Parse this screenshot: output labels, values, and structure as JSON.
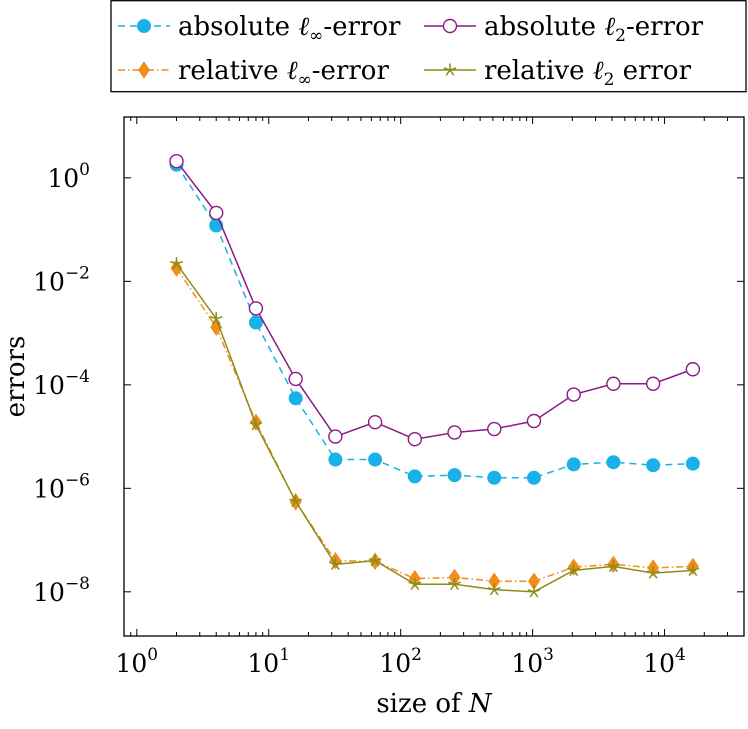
{
  "chart_data": {
    "type": "line",
    "title": "",
    "xlabel": "size of N",
    "ylabel": "errors",
    "xscale": "log",
    "yscale": "log",
    "xlim": [
      0.8,
      40000
    ],
    "ylim": [
      1.4e-09,
      15
    ],
    "x_ticks": [
      {
        "value": 1,
        "base": "10",
        "exp": "0"
      },
      {
        "value": 10,
        "base": "10",
        "exp": "1"
      },
      {
        "value": 100,
        "base": "10",
        "exp": "2"
      },
      {
        "value": 1000,
        "base": "10",
        "exp": "3"
      },
      {
        "value": 10000,
        "base": "10",
        "exp": "4"
      }
    ],
    "y_ticks": [
      {
        "value": 1,
        "base": "10",
        "exp": "0"
      },
      {
        "value": 0.01,
        "base": "10",
        "exp": "−2"
      },
      {
        "value": 0.0001,
        "base": "10",
        "exp": "−4"
      },
      {
        "value": 1e-06,
        "base": "10",
        "exp": "−6"
      },
      {
        "value": 1e-08,
        "base": "10",
        "exp": "−8"
      }
    ],
    "grid": false,
    "legend_position": "above",
    "x": [
      2,
      4,
      8,
      16,
      32,
      64,
      128,
      256,
      512,
      1024,
      2048,
      4096,
      8192,
      16384
    ],
    "series": [
      {
        "name": "absolute ℓ∞-error",
        "legend": {
          "pre": "absolute ",
          "sym": "ℓ",
          "sub": "∞",
          "post": "-error"
        },
        "color": "#1ab0e8",
        "marker": "filled-circle",
        "dash": "dashed",
        "values": [
          1.8,
          0.12,
          0.0016,
          5.5e-05,
          3.6e-06,
          3.6e-06,
          1.7e-06,
          1.8e-06,
          1.6e-06,
          1.6e-06,
          2.9e-06,
          3.2e-06,
          2.8e-06,
          3e-06
        ]
      },
      {
        "name": "absolute ℓ2-error",
        "legend": {
          "pre": "absolute ",
          "sym": "ℓ",
          "sub": "2",
          "post": "-error"
        },
        "color": "#8a1a86",
        "marker": "open-circle",
        "dash": "solid",
        "values": [
          2.1,
          0.21,
          0.003,
          0.00013,
          1e-05,
          1.9e-05,
          8.9e-06,
          1.2e-05,
          1.4e-05,
          2e-05,
          6.5e-05,
          0.000105,
          0.000105,
          0.0002
        ]
      },
      {
        "name": "relative ℓ∞-error",
        "legend": {
          "pre": "relative ",
          "sym": "ℓ",
          "sub": "∞",
          "post": "-error"
        },
        "color": "#f28c1a",
        "marker": "diamond",
        "dash": "dashdot",
        "values": [
          0.018,
          0.0013,
          1.9e-05,
          5.5e-07,
          4e-08,
          3.9e-08,
          1.8e-08,
          1.9e-08,
          1.6e-08,
          1.6e-08,
          3e-08,
          3.4e-08,
          2.9e-08,
          3.1e-08
        ]
      },
      {
        "name": "relative ℓ2 error",
        "legend": {
          "pre": "relative ",
          "sym": "ℓ",
          "sub": "2",
          "post": " error"
        },
        "color": "#8c8c18",
        "marker": "star",
        "dash": "solid",
        "values": [
          0.022,
          0.0019,
          1.7e-05,
          5.6e-07,
          3.4e-08,
          4e-08,
          1.4e-08,
          1.4e-08,
          1.1e-08,
          1e-08,
          2.6e-08,
          3.1e-08,
          2.3e-08,
          2.6e-08
        ]
      }
    ]
  }
}
